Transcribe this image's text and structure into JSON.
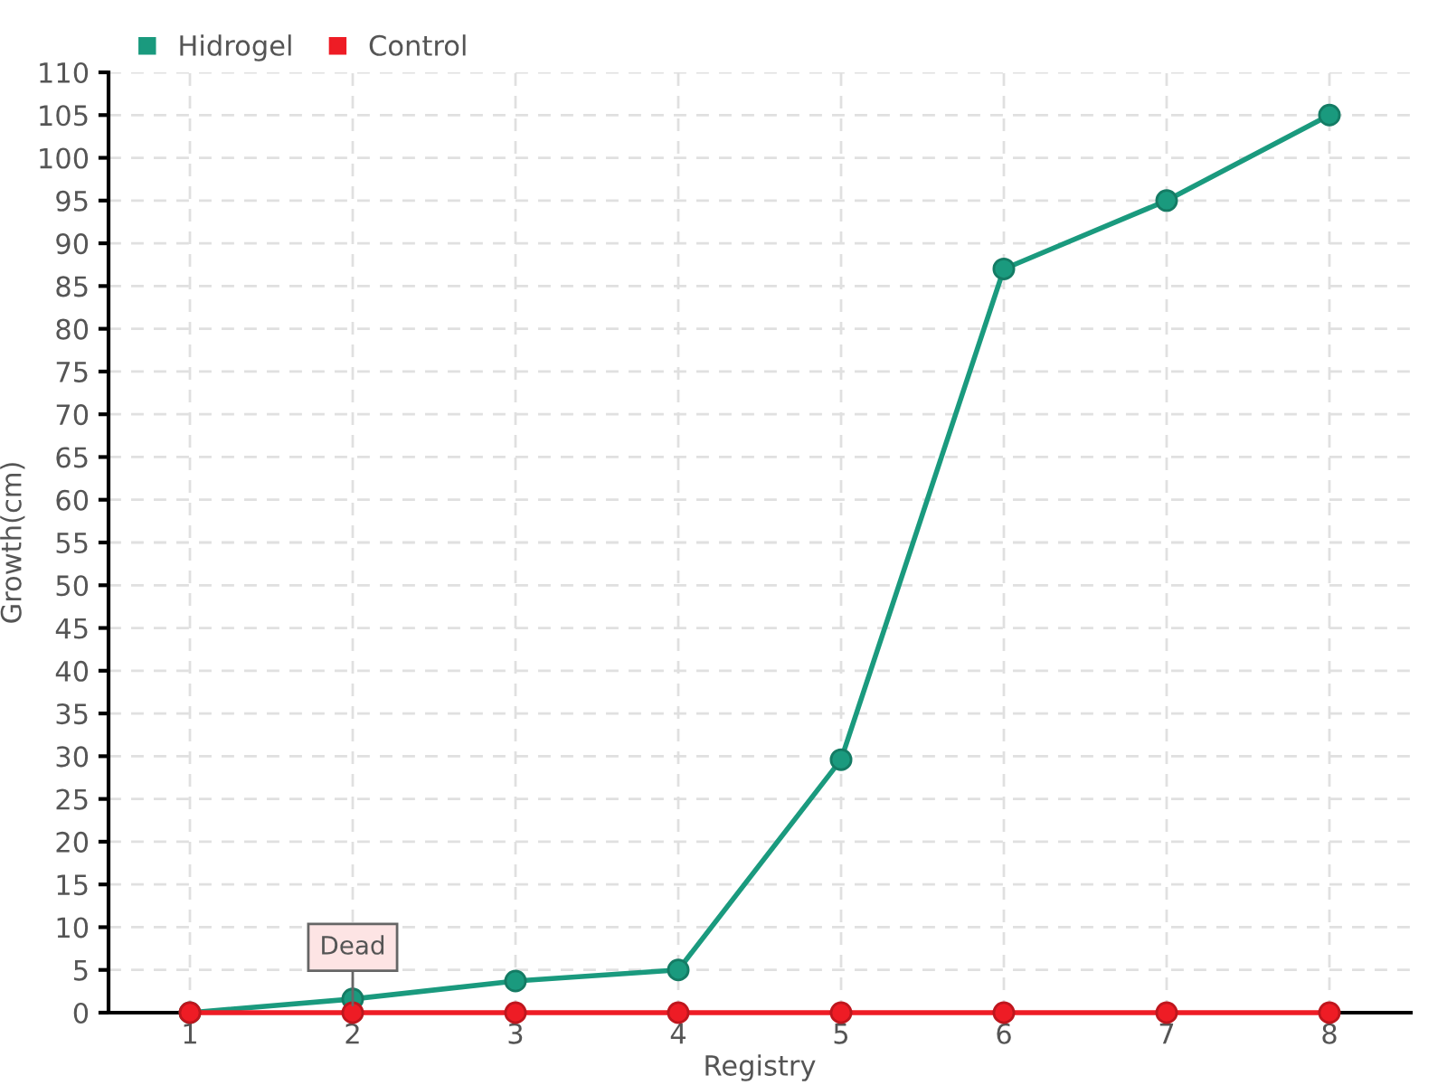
{
  "chart_data": {
    "type": "line",
    "xlabel": "Registry",
    "ylabel": "Growth(cm)",
    "categories": [
      "1",
      "2",
      "3",
      "4",
      "5",
      "6",
      "7",
      "8"
    ],
    "series": [
      {
        "name": "Hidrogel",
        "color": "#1a9a7e",
        "values": [
          0,
          1.6,
          3.7,
          5,
          29.6,
          87,
          95,
          105
        ]
      },
      {
        "name": "Control",
        "color": "#ee1c25",
        "values": [
          0,
          0,
          0,
          0,
          0,
          0,
          0,
          0
        ]
      }
    ],
    "ylim": [
      0,
      110
    ],
    "yticks": [
      0,
      5,
      10,
      15,
      20,
      25,
      30,
      35,
      40,
      45,
      50,
      55,
      60,
      65,
      70,
      75,
      80,
      85,
      90,
      95,
      100,
      105,
      110
    ],
    "grid": true,
    "legend": "top left",
    "marker": "circle",
    "line_style": "solid",
    "annotations": [
      {
        "text": "Dead",
        "x": "2",
        "y": 0
      }
    ]
  }
}
